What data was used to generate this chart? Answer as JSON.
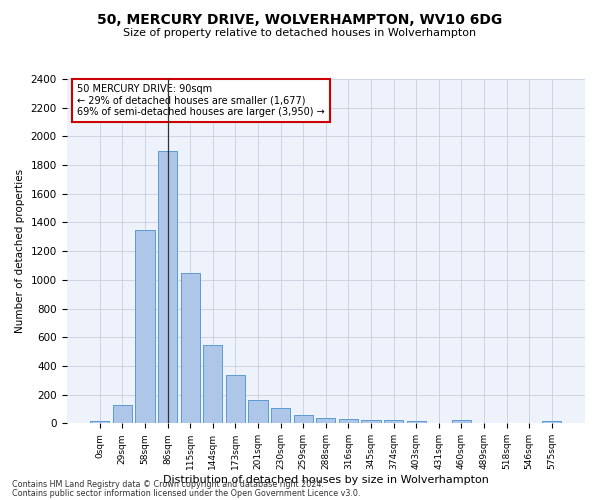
{
  "title_line1": "50, MERCURY DRIVE, WOLVERHAMPTON, WV10 6DG",
  "title_line2": "Size of property relative to detached houses in Wolverhampton",
  "xlabel": "Distribution of detached houses by size in Wolverhampton",
  "ylabel": "Number of detached properties",
  "footer_line1": "Contains HM Land Registry data © Crown copyright and database right 2024.",
  "footer_line2": "Contains public sector information licensed under the Open Government Licence v3.0.",
  "annotation_line1": "50 MERCURY DRIVE: 90sqm",
  "annotation_line2": "← 29% of detached houses are smaller (1,677)",
  "annotation_line3": "69% of semi-detached houses are larger (3,950) →",
  "bar_labels": [
    "0sqm",
    "29sqm",
    "58sqm",
    "86sqm",
    "115sqm",
    "144sqm",
    "173sqm",
    "201sqm",
    "230sqm",
    "259sqm",
    "288sqm",
    "316sqm",
    "345sqm",
    "374sqm",
    "403sqm",
    "431sqm",
    "460sqm",
    "489sqm",
    "518sqm",
    "546sqm",
    "575sqm"
  ],
  "bar_values": [
    15,
    125,
    1350,
    1900,
    1045,
    545,
    335,
    165,
    105,
    60,
    35,
    30,
    25,
    20,
    15,
    3,
    20,
    3,
    3,
    3,
    15
  ],
  "bar_color": "#aec6e8",
  "bar_edge_color": "#5a9bd5",
  "highlight_bar_index": 3,
  "highlight_line_color": "#333333",
  "ylim": [
    0,
    2400
  ],
  "yticks": [
    0,
    200,
    400,
    600,
    800,
    1000,
    1200,
    1400,
    1600,
    1800,
    2000,
    2200,
    2400
  ],
  "annotation_box_color": "#cc0000",
  "background_color": "#eef2fa",
  "grid_color": "#c8cfe0"
}
